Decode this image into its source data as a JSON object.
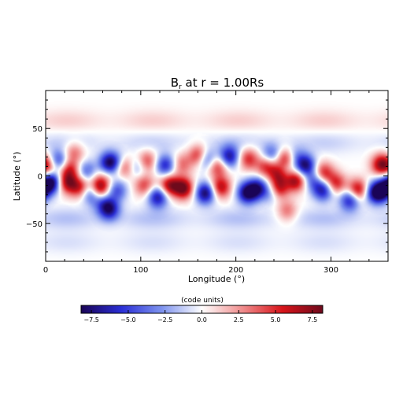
{
  "chart_data": {
    "type": "heatmap",
    "title": "B",
    "title_sub": "r",
    "title_rest": " at r = 1.00Rs",
    "xlabel": "Longitude (°)",
    "ylabel": "Latitude (°)",
    "xlim": [
      0,
      360
    ],
    "ylim": [
      -90,
      90
    ],
    "xticks": [
      0,
      100,
      200,
      300
    ],
    "yticks": [
      -50,
      0,
      50
    ],
    "colorbar": {
      "label": "(code units)",
      "range": [
        -8.2,
        8.2
      ],
      "ticks": [
        -7.5,
        -5.0,
        -2.5,
        0.0,
        2.5,
        5.0,
        7.5
      ],
      "tick_labels": [
        "−7.5",
        "−5.0",
        "−2.5",
        "0.0",
        "2.5",
        "5.0",
        "7.5"
      ],
      "colors": [
        "#1a0457",
        "#2b2fd6",
        "#7e93ee",
        "#ffffff",
        "#f08e8e",
        "#d8141a",
        "#6e0a1c"
      ]
    },
    "blobs": [
      {
        "lon": 7,
        "lat": -6,
        "value": -7.5
      },
      {
        "lon": 13,
        "lat": 15,
        "value": -6.5
      },
      {
        "lon": 5,
        "lat": 10,
        "value": 5.0
      },
      {
        "lon": 22,
        "lat": -7,
        "value": 6.5
      },
      {
        "lon": 25,
        "lat": 7,
        "value": 5.5
      },
      {
        "lon": 30,
        "lat": 25,
        "value": 3.5
      },
      {
        "lon": 36,
        "lat": -12,
        "value": 6.0
      },
      {
        "lon": 43,
        "lat": 5,
        "value": -4.0
      },
      {
        "lon": 48,
        "lat": -18,
        "value": -6.0
      },
      {
        "lon": 56,
        "lat": -14,
        "value": 7.0
      },
      {
        "lon": 67,
        "lat": 14,
        "value": -7.5
      },
      {
        "lon": 77,
        "lat": 13,
        "value": -3.5
      },
      {
        "lon": 82,
        "lat": 10,
        "value": 6.0
      },
      {
        "lon": 75,
        "lat": -15,
        "value": -4.5
      },
      {
        "lon": 60,
        "lat": -28,
        "value": -3.0
      },
      {
        "lon": 59,
        "lat": -6,
        "value": 3.0
      },
      {
        "lon": 67,
        "lat": -35,
        "value": -7.0
      },
      {
        "lon": 97,
        "lat": 10,
        "value": -3.5
      },
      {
        "lon": 104,
        "lat": -10,
        "value": 4.5
      },
      {
        "lon": 106,
        "lat": 15,
        "value": 5.0
      },
      {
        "lon": 118,
        "lat": -22,
        "value": -7.0
      },
      {
        "lon": 126,
        "lat": 11,
        "value": -6.0
      },
      {
        "lon": 143,
        "lat": 12,
        "value": 3.5
      },
      {
        "lon": 145,
        "lat": -13,
        "value": 8.0
      },
      {
        "lon": 130,
        "lat": -10,
        "value": 7.0
      },
      {
        "lon": 162,
        "lat": 21,
        "value": 7.5
      },
      {
        "lon": 168,
        "lat": -18,
        "value": -8.0
      },
      {
        "lon": 168,
        "lat": 18,
        "value": -7.0
      },
      {
        "lon": 181,
        "lat": 10,
        "value": 5.0
      },
      {
        "lon": 184,
        "lat": -12,
        "value": 6.5
      },
      {
        "lon": 193,
        "lat": 20,
        "value": -7.0
      },
      {
        "lon": 212,
        "lat": -18,
        "value": -8.0
      },
      {
        "lon": 223,
        "lat": -13,
        "value": -6.5
      },
      {
        "lon": 213,
        "lat": 18,
        "value": 5.0
      },
      {
        "lon": 232,
        "lat": 10,
        "value": 5.0
      },
      {
        "lon": 238,
        "lat": 22,
        "value": -4.5
      },
      {
        "lon": 246,
        "lat": 3,
        "value": 8.0
      },
      {
        "lon": 252,
        "lat": 17,
        "value": 7.0
      },
      {
        "lon": 244,
        "lat": -14,
        "value": 8.0
      },
      {
        "lon": 263,
        "lat": -5,
        "value": 7.0
      },
      {
        "lon": 250,
        "lat": 7,
        "value": -5.5
      },
      {
        "lon": 239,
        "lat": -17,
        "value": -5.0
      },
      {
        "lon": 262,
        "lat": 20,
        "value": -3.0
      },
      {
        "lon": 254,
        "lat": -37,
        "value": 3.5
      },
      {
        "lon": 273,
        "lat": 11,
        "value": -7.5
      },
      {
        "lon": 282,
        "lat": -5,
        "value": -4.0
      },
      {
        "lon": 292,
        "lat": 3,
        "value": 5.5
      },
      {
        "lon": 292,
        "lat": -15,
        "value": -6.5
      },
      {
        "lon": 305,
        "lat": -8,
        "value": 5.5
      },
      {
        "lon": 320,
        "lat": -25,
        "value": -6.5
      },
      {
        "lon": 328,
        "lat": -15,
        "value": 7.0
      },
      {
        "lon": 345,
        "lat": -18,
        "value": -4.5
      },
      {
        "lon": 352,
        "lat": -17,
        "value": -7.5
      },
      {
        "lon": 353,
        "lat": 12,
        "value": 7.0
      },
      {
        "lon": 360,
        "lat": -10,
        "value": -4.0
      }
    ],
    "bands": [
      {
        "lat": 58,
        "value": 1.2
      },
      {
        "lat": 35,
        "value": -1.2
      },
      {
        "lat": -45,
        "value": -1.6
      },
      {
        "lat": -70,
        "value": -0.8
      }
    ]
  }
}
